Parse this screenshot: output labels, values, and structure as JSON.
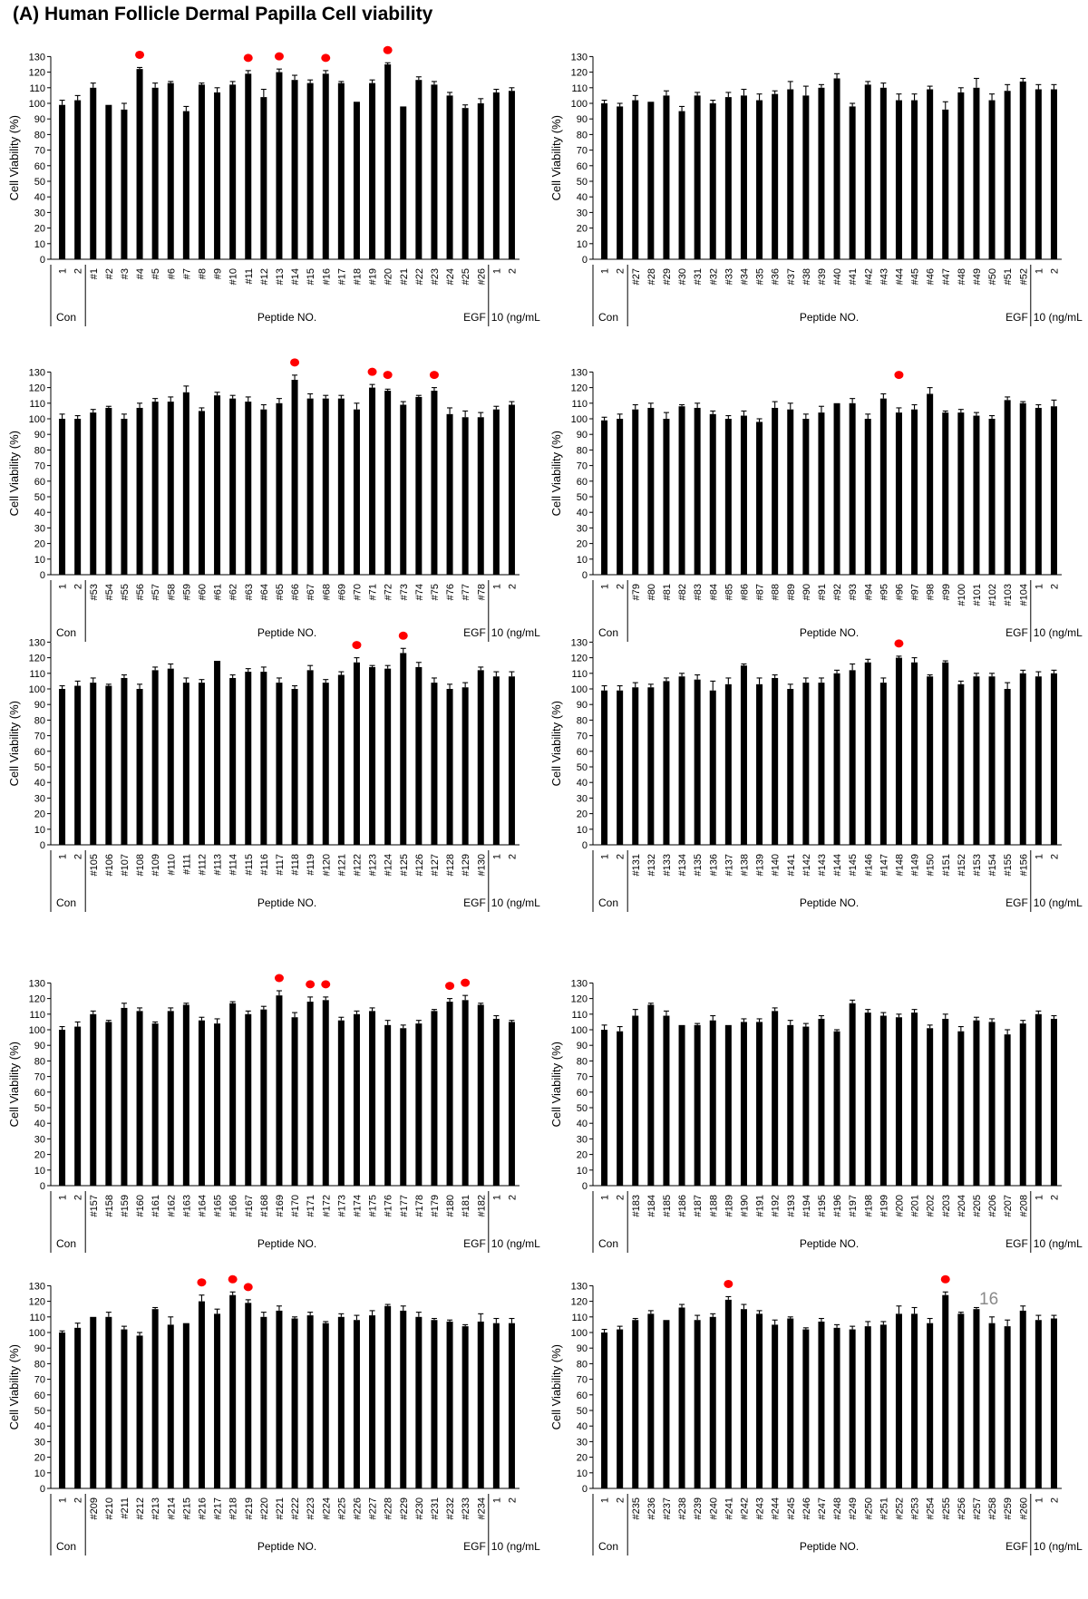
{
  "figure_title": "(A) Human Follicle Dermal Papilla Cell viability",
  "page_note": "16",
  "common": {
    "ylabel": "Cell Viability (%)",
    "ylim": [
      0,
      130
    ],
    "yticks": [
      0,
      10,
      20,
      30,
      40,
      50,
      60,
      70,
      80,
      90,
      100,
      110,
      120,
      130
    ],
    "group_labels": {
      "control": "Con",
      "peptides": "Peptide NO.",
      "egf": "EGF",
      "egf_unit": "10 (ng/mL)"
    },
    "bar_color": "#000000",
    "marker_color": "#ff0000"
  },
  "chart_data": [
    {
      "type": "bar",
      "categories": [
        "1",
        "2",
        "#1",
        "#2",
        "#3",
        "#4",
        "#5",
        "#6",
        "#7",
        "#8",
        "#9",
        "#10",
        "#11",
        "#12",
        "#13",
        "#14",
        "#15",
        "#16",
        "#17",
        "#18",
        "#19",
        "#20",
        "#21",
        "#22",
        "#23",
        "#24",
        "#25",
        "#26",
        "1",
        "2"
      ],
      "values": [
        99,
        102,
        110,
        99,
        96,
        122,
        110,
        113,
        95,
        112,
        107,
        112,
        119,
        104,
        120,
        115,
        113,
        119,
        113,
        101,
        113,
        125,
        98,
        115,
        112,
        105,
        97,
        100,
        107,
        108
      ],
      "errors": [
        3,
        3,
        3,
        0,
        4,
        1,
        3,
        1,
        3,
        1,
        3,
        2,
        2,
        5,
        2,
        3,
        2,
        2,
        1,
        0,
        2,
        1,
        0,
        2,
        2,
        2,
        2,
        3,
        2,
        2
      ],
      "marked": [
        "#4",
        "#11",
        "#13",
        "#16",
        "#20"
      ]
    },
    {
      "type": "bar",
      "categories": [
        "1",
        "2",
        "#27",
        "#28",
        "#29",
        "#30",
        "#31",
        "#32",
        "#33",
        "#34",
        "#35",
        "#36",
        "#37",
        "#38",
        "#39",
        "#40",
        "#41",
        "#42",
        "#43",
        "#44",
        "#45",
        "#46",
        "#47",
        "#48",
        "#49",
        "#50",
        "#51",
        "#52",
        "1",
        "2"
      ],
      "values": [
        100,
        98,
        102,
        101,
        105,
        95,
        105,
        100,
        104,
        105,
        102,
        106,
        109,
        105,
        110,
        116,
        98,
        112,
        110,
        102,
        102,
        109,
        96,
        107,
        110,
        102,
        108,
        114,
        109,
        109
      ],
      "errors": [
        2,
        2,
        3,
        0,
        3,
        3,
        2,
        2,
        3,
        4,
        4,
        2,
        5,
        6,
        2,
        3,
        2,
        2,
        3,
        4,
        4,
        2,
        5,
        3,
        6,
        4,
        4,
        2,
        3,
        3
      ],
      "marked": []
    },
    {
      "type": "bar",
      "categories": [
        "1",
        "2",
        "#53",
        "#54",
        "#55",
        "#56",
        "#57",
        "#58",
        "#59",
        "#60",
        "#61",
        "#62",
        "#63",
        "#64",
        "#65",
        "#66",
        "#67",
        "#68",
        "#69",
        "#70",
        "#71",
        "#72",
        "#73",
        "#74",
        "#75",
        "#76",
        "#77",
        "#78",
        "1",
        "2"
      ],
      "values": [
        100,
        100,
        104,
        107,
        100,
        107,
        111,
        111,
        117,
        105,
        115,
        113,
        111,
        106,
        110,
        125,
        113,
        113,
        113,
        106,
        120,
        118,
        109,
        114,
        118,
        103,
        101,
        101,
        106,
        109
      ],
      "errors": [
        3,
        2,
        2,
        1,
        3,
        3,
        2,
        3,
        4,
        2,
        2,
        2,
        3,
        3,
        3,
        3,
        3,
        2,
        2,
        4,
        2,
        1,
        2,
        1,
        2,
        4,
        4,
        3,
        2,
        2
      ],
      "marked": [
        "#66",
        "#71",
        "#72",
        "#75"
      ]
    },
    {
      "type": "bar",
      "categories": [
        "1",
        "2",
        "#79",
        "#80",
        "#81",
        "#82",
        "#83",
        "#84",
        "#85",
        "#86",
        "#87",
        "#88",
        "#89",
        "#90",
        "#91",
        "#92",
        "#93",
        "#94",
        "#95",
        "#96",
        "#97",
        "#98",
        "#99",
        "#100",
        "#101",
        "#102",
        "#103",
        "#104",
        "1",
        "2"
      ],
      "values": [
        99,
        100,
        106,
        107,
        100,
        108,
        107,
        103,
        100,
        102,
        98,
        107,
        106,
        100,
        104,
        110,
        110,
        100,
        113,
        104,
        106,
        116,
        104,
        104,
        102,
        100,
        112,
        110,
        107,
        108
      ],
      "errors": [
        2,
        3,
        3,
        3,
        4,
        1,
        3,
        2,
        2,
        3,
        2,
        4,
        4,
        3,
        4,
        0,
        3,
        3,
        3,
        3,
        3,
        4,
        1,
        2,
        2,
        2,
        2,
        1,
        2,
        4
      ],
      "marked": [
        "#96"
      ]
    },
    {
      "type": "bar",
      "categories": [
        "1",
        "2",
        "#105",
        "#106",
        "#107",
        "#108",
        "#109",
        "#110",
        "#111",
        "#112",
        "#113",
        "#114",
        "#115",
        "#116",
        "#117",
        "#118",
        "#119",
        "#120",
        "#121",
        "#122",
        "#123",
        "#124",
        "#125",
        "#126",
        "#127",
        "#128",
        "#129",
        "#130",
        "1",
        "2"
      ],
      "values": [
        100,
        102,
        104,
        102,
        107,
        100,
        112,
        113,
        104,
        104,
        118,
        107,
        111,
        111,
        104,
        100,
        112,
        104,
        109,
        117,
        114,
        113,
        123,
        114,
        104,
        100,
        101,
        112,
        108,
        108
      ],
      "errors": [
        2,
        3,
        3,
        1,
        2,
        3,
        2,
        3,
        3,
        2,
        0,
        2,
        2,
        3,
        3,
        2,
        3,
        2,
        2,
        3,
        1,
        2,
        3,
        3,
        3,
        3,
        3,
        2,
        3,
        3
      ],
      "marked": [
        "#122",
        "#125"
      ]
    },
    {
      "type": "bar",
      "categories": [
        "1",
        "2",
        "#131",
        "#132",
        "#133",
        "#134",
        "#135",
        "#136",
        "#137",
        "#138",
        "#139",
        "#140",
        "#141",
        "#142",
        "#143",
        "#144",
        "#145",
        "#146",
        "#147",
        "#148",
        "#149",
        "#150",
        "#151",
        "#152",
        "#153",
        "#154",
        "#155",
        "#156",
        "1",
        "2"
      ],
      "values": [
        99,
        99,
        101,
        101,
        105,
        108,
        106,
        99,
        103,
        115,
        103,
        107,
        100,
        104,
        104,
        110,
        112,
        117,
        104,
        120,
        117,
        108,
        117,
        103,
        108,
        108,
        100,
        110,
        108,
        110
      ],
      "errors": [
        3,
        3,
        3,
        2,
        2,
        2,
        3,
        6,
        4,
        1,
        4,
        2,
        3,
        3,
        3,
        2,
        4,
        2,
        3,
        1,
        3,
        1,
        1,
        2,
        2,
        2,
        4,
        2,
        3,
        2
      ],
      "marked": [
        "#148"
      ]
    },
    {
      "type": "bar",
      "categories": [
        "1",
        "2",
        "#157",
        "#158",
        "#159",
        "#160",
        "#161",
        "#162",
        "#163",
        "#164",
        "#165",
        "#166",
        "#167",
        "#168",
        "#169",
        "#170",
        "#171",
        "#172",
        "#173",
        "#174",
        "#175",
        "#176",
        "#177",
        "#178",
        "#179",
        "#180",
        "#181",
        "#182",
        "1",
        "2"
      ],
      "values": [
        100,
        102,
        110,
        105,
        114,
        112,
        104,
        112,
        116,
        106,
        104,
        117,
        110,
        113,
        122,
        108,
        118,
        119,
        106,
        110,
        112,
        103,
        101,
        104,
        112,
        118,
        119,
        116,
        107,
        105
      ],
      "errors": [
        2,
        3,
        2,
        1,
        3,
        2,
        1,
        2,
        1,
        2,
        3,
        1,
        2,
        2,
        3,
        3,
        3,
        2,
        2,
        2,
        2,
        3,
        2,
        2,
        1,
        2,
        3,
        1,
        2,
        1
      ],
      "marked": [
        "#169",
        "#171",
        "#172",
        "#180",
        "#181"
      ]
    },
    {
      "type": "bar",
      "categories": [
        "1",
        "2",
        "#183",
        "#184",
        "#185",
        "#186",
        "#187",
        "#188",
        "#189",
        "#190",
        "#191",
        "#192",
        "#193",
        "#194",
        "#195",
        "#196",
        "#197",
        "#198",
        "#199",
        "#200",
        "#201",
        "#202",
        "#203",
        "#204",
        "#205",
        "#206",
        "#207",
        "#208",
        "1",
        "2"
      ],
      "values": [
        100,
        99,
        109,
        116,
        109,
        103,
        103,
        106,
        103,
        105,
        105,
        112,
        103,
        102,
        107,
        99,
        117,
        111,
        109,
        108,
        111,
        101,
        107,
        99,
        106,
        105,
        97,
        104,
        110,
        107
      ],
      "errors": [
        3,
        3,
        4,
        1,
        3,
        0,
        1,
        3,
        0,
        2,
        2,
        2,
        3,
        2,
        2,
        1,
        2,
        2,
        2,
        2,
        2,
        2,
        3,
        3,
        2,
        2,
        3,
        2,
        2,
        2
      ],
      "marked": []
    },
    {
      "type": "bar",
      "categories": [
        "1",
        "2",
        "#209",
        "#210",
        "#211",
        "#212",
        "#213",
        "#214",
        "#215",
        "#216",
        "#217",
        "#218",
        "#219",
        "#220",
        "#221",
        "#222",
        "#223",
        "#224",
        "#225",
        "#226",
        "#227",
        "#228",
        "#229",
        "#230",
        "#231",
        "#232",
        "#233",
        "#234",
        "1",
        "2"
      ],
      "values": [
        100,
        103,
        110,
        110,
        102,
        98,
        115,
        105,
        106,
        120,
        112,
        124,
        119,
        110,
        114,
        109,
        111,
        106,
        110,
        108,
        111,
        117,
        114,
        110,
        108,
        107,
        104,
        107,
        106,
        106
      ],
      "errors": [
        1,
        3,
        0,
        3,
        2,
        2,
        1,
        5,
        0,
        4,
        3,
        2,
        2,
        3,
        3,
        1,
        2,
        1,
        2,
        3,
        3,
        1,
        3,
        3,
        1,
        1,
        1,
        5,
        3,
        3
      ],
      "marked": [
        "#216",
        "#218",
        "#219"
      ]
    },
    {
      "type": "bar",
      "categories": [
        "1",
        "2",
        "#235",
        "#236",
        "#237",
        "#238",
        "#239",
        "#240",
        "#241",
        "#242",
        "#243",
        "#244",
        "#245",
        "#246",
        "#247",
        "#248",
        "#249",
        "#250",
        "#251",
        "#252",
        "#253",
        "#254",
        "#255",
        "#256",
        "#257",
        "#258",
        "#259",
        "#260",
        "1",
        "2"
      ],
      "values": [
        100,
        102,
        108,
        112,
        108,
        116,
        108,
        110,
        121,
        115,
        112,
        105,
        109,
        102,
        107,
        103,
        102,
        104,
        105,
        112,
        112,
        106,
        124,
        112,
        115,
        106,
        104,
        114,
        108,
        109
      ],
      "errors": [
        2,
        2,
        1,
        2,
        0,
        2,
        3,
        2,
        2,
        3,
        2,
        3,
        1,
        1,
        2,
        2,
        2,
        3,
        2,
        5,
        4,
        3,
        2,
        1,
        1,
        4,
        4,
        3,
        3,
        2
      ],
      "marked": [
        "#241",
        "#255"
      ]
    }
  ]
}
